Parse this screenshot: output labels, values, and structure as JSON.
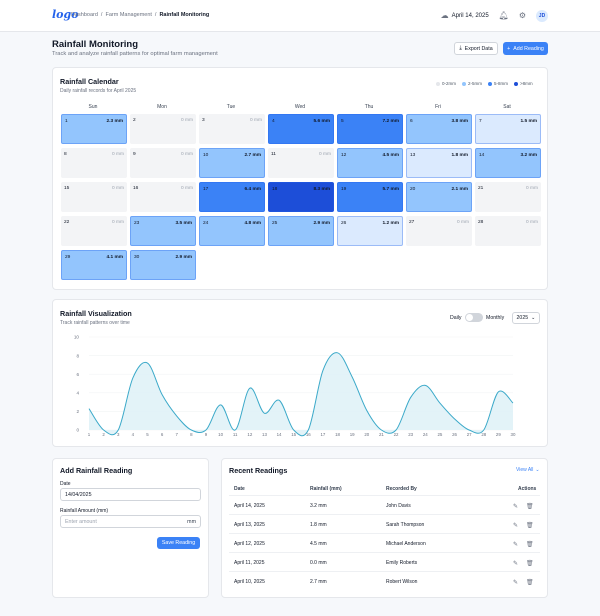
{
  "header": {
    "logo_text": "logo",
    "breadcrumb": [
      "Dashboard",
      "Farm Management",
      "Rainfall Monitoring"
    ],
    "date": "April 14, 2025",
    "avatar_initials": "JD"
  },
  "page": {
    "title": "Rainfall Monitoring",
    "subtitle": "Track and analyze rainfall patterns for optimal farm management",
    "export_label": "Export Data",
    "add_label": "Add Reading"
  },
  "calendar": {
    "title": "Rainfall Calendar",
    "subtitle": "Daily rainfall records for April 2025",
    "legend": [
      {
        "label": "0-2mm",
        "color": "#e5e7eb"
      },
      {
        "label": "2-5mm",
        "color": "#93c5fd"
      },
      {
        "label": "5-8mm",
        "color": "#3b82f6"
      },
      {
        "label": ">8mm",
        "color": "#1d4ed8"
      }
    ],
    "weekdays": [
      "Sun",
      "Mon",
      "Tue",
      "Wed",
      "Thu",
      "Fri",
      "Sat"
    ],
    "days": [
      {
        "day": "1",
        "value": "2.3 mm"
      },
      {
        "day": "2",
        "value": "0 mm"
      },
      {
        "day": "3",
        "value": "0 mm"
      },
      {
        "day": "4",
        "value": "5.6 mm"
      },
      {
        "day": "5",
        "value": "7.2 mm"
      },
      {
        "day": "6",
        "value": "3.8 mm"
      },
      {
        "day": "7",
        "value": "1.5 mm"
      },
      {
        "day": "8",
        "value": "0 mm"
      },
      {
        "day": "9",
        "value": "0 mm"
      },
      {
        "day": "10",
        "value": "2.7 mm"
      },
      {
        "day": "11",
        "value": "0 mm"
      },
      {
        "day": "12",
        "value": "4.5 mm"
      },
      {
        "day": "13",
        "value": "1.8 mm"
      },
      {
        "day": "14",
        "value": "3.2 mm"
      },
      {
        "day": "15",
        "value": "0 mm"
      },
      {
        "day": "16",
        "value": "0 mm"
      },
      {
        "day": "17",
        "value": "6.4 mm"
      },
      {
        "day": "18",
        "value": "8.3 mm"
      },
      {
        "day": "19",
        "value": "5.7 mm"
      },
      {
        "day": "20",
        "value": "2.1 mm"
      },
      {
        "day": "21",
        "value": "0 mm"
      },
      {
        "day": "22",
        "value": "0 mm"
      },
      {
        "day": "23",
        "value": "3.5 mm"
      },
      {
        "day": "24",
        "value": "4.8 mm"
      },
      {
        "day": "25",
        "value": "2.9 mm"
      },
      {
        "day": "26",
        "value": "1.2 mm"
      },
      {
        "day": "27",
        "value": "0 mm"
      },
      {
        "day": "28",
        "value": "0 mm"
      },
      {
        "day": "29",
        "value": "4.1 mm"
      },
      {
        "day": "30",
        "value": "2.9 mm"
      }
    ]
  },
  "visualization": {
    "title": "Rainfall Visualization",
    "subtitle": "Track rainfall patterns over time",
    "toggle_left": "Daily",
    "toggle_right": "Monthly",
    "year": "2025"
  },
  "chart_data": {
    "type": "area",
    "x": [
      1,
      2,
      3,
      4,
      5,
      6,
      7,
      8,
      9,
      10,
      11,
      12,
      13,
      14,
      15,
      16,
      17,
      18,
      19,
      20,
      21,
      22,
      23,
      24,
      25,
      26,
      27,
      28,
      29,
      30
    ],
    "values": [
      2.3,
      0,
      0,
      5.6,
      7.2,
      3.8,
      1.5,
      0,
      0,
      2.7,
      0,
      4.5,
      1.8,
      3.2,
      0,
      0,
      6.4,
      8.3,
      5.7,
      2.1,
      0,
      0,
      3.5,
      4.8,
      2.9,
      1.2,
      0,
      0,
      4.1,
      2.9
    ],
    "yticks": [
      0,
      2,
      4,
      6,
      8,
      10
    ],
    "ylim": [
      0,
      10
    ],
    "line_color": "#3ba9c9",
    "fill_color": "#e0f2f7"
  },
  "form": {
    "title": "Add Rainfall Reading",
    "date_label": "Date",
    "date_value": "14/04/2025",
    "amount_label": "Rainfall Amount (mm)",
    "amount_placeholder": "Enter amount",
    "amount_unit": "mm",
    "save_label": "Save Reading"
  },
  "recent": {
    "title": "Recent Readings",
    "view_all": "View All",
    "columns": [
      "Date",
      "Rainfall (mm)",
      "Recorded By",
      "Actions"
    ],
    "rows": [
      {
        "date": "April 14, 2025",
        "rain": "3.2 mm",
        "by": "John Davis"
      },
      {
        "date": "April 13, 2025",
        "rain": "1.8 mm",
        "by": "Sarah Thompson"
      },
      {
        "date": "April 12, 2025",
        "rain": "4.5 mm",
        "by": "Michael Anderson"
      },
      {
        "date": "April 11, 2025",
        "rain": "0.0 mm",
        "by": "Emily Roberts"
      },
      {
        "date": "April 10, 2025",
        "rain": "2.7 mm",
        "by": "Robert Wilson"
      }
    ]
  }
}
